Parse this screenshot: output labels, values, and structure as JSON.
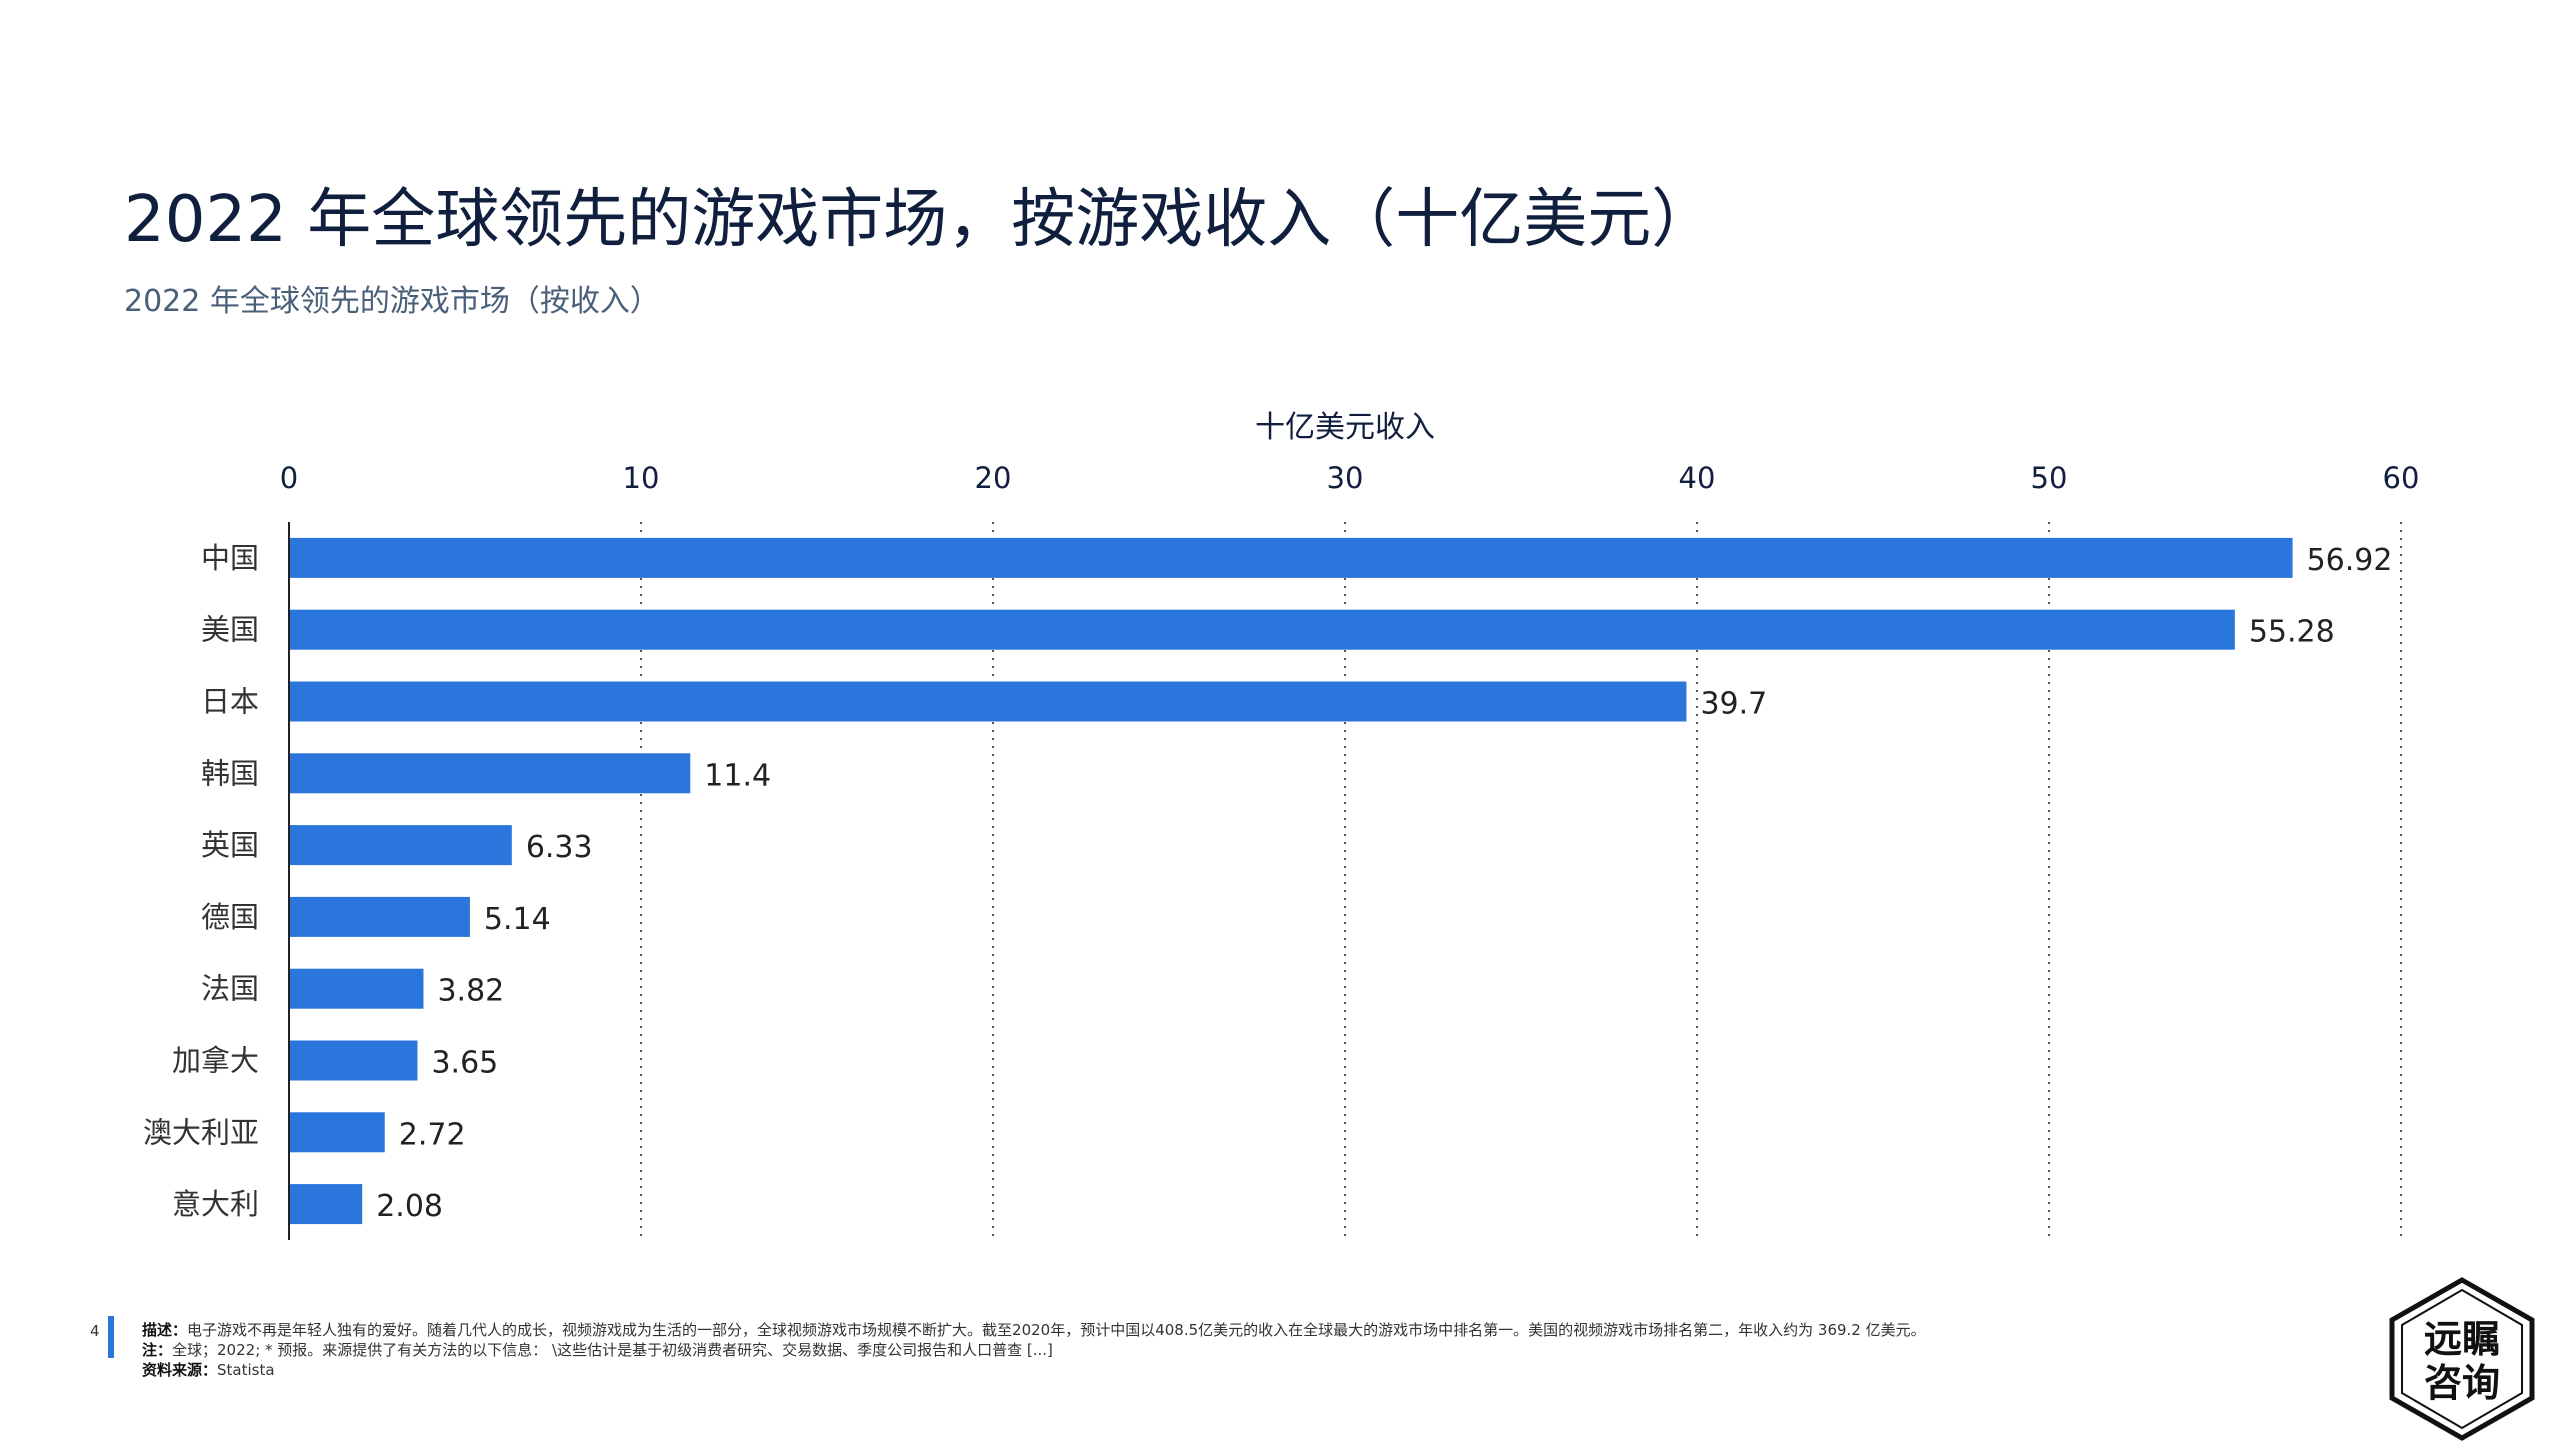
{
  "header": {
    "title": "2022 年全球领先的游戏市场，按游戏收入（十亿美元）",
    "subtitle": "2022 年全球领先的游戏市场（按收入）"
  },
  "chart_data": {
    "type": "bar",
    "orientation": "horizontal",
    "xlabel": "十亿美元收入",
    "xlim": [
      0,
      60
    ],
    "xticks": [
      "0",
      "10",
      "20",
      "30",
      "40",
      "50",
      "60"
    ],
    "grid": "vertical-dotted",
    "bar_color": "#2a76dd",
    "categories": [
      "中国",
      "美国",
      "日本",
      "韩国",
      "英国",
      "德国",
      "法国",
      "加拿大",
      "澳大利亚",
      "意大利"
    ],
    "values": [
      56.92,
      55.28,
      39.7,
      11.4,
      6.33,
      5.14,
      3.82,
      3.65,
      2.72,
      2.08
    ],
    "value_labels": [
      "56.92",
      "55.28",
      "39.7",
      "11.4",
      "6.33",
      "5.14",
      "3.82",
      "3.65",
      "2.72",
      "2.08"
    ]
  },
  "footer": {
    "page_number": "4",
    "desc_label": "描述：",
    "desc_text": "电子游戏不再是年轻人独有的爱好。随着几代人的成长，视频游戏成为生活的一部分，全球视频游戏市场规模不断扩大。截至2020年，预计中国以408.5亿美元的收入在全球最大的游戏市场中排名第一。美国的视频游戏市场排名第二，年收入约为 369.2 亿美元。",
    "note_label": "注：",
    "note_text": "全球；2022; * 预报。来源提供了有关方法的以下信息： \\这些估计是基于初级消费者研究、交易数据、季度公司报告和人口普查 [...]",
    "source_label": "资料来源：",
    "source_text": "Statista"
  },
  "logo": {
    "line1": "远瞩",
    "line2": "咨询"
  }
}
